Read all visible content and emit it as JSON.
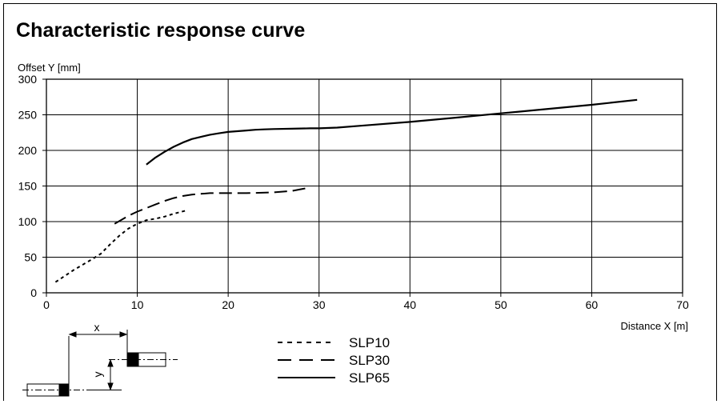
{
  "chart_data": {
    "type": "line",
    "title": "Characteristic response curve",
    "ylabel": "Offset Y [mm]",
    "xlabel": "Distance X [m]",
    "xlim": [
      0,
      70
    ],
    "ylim": [
      0,
      300
    ],
    "xticks": [
      0,
      10,
      20,
      30,
      40,
      50,
      60,
      70
    ],
    "yticks": [
      0,
      50,
      100,
      150,
      200,
      250,
      300
    ],
    "grid": true,
    "legend_position": "bottom-center",
    "series": [
      {
        "name": "SLP10",
        "style": "dotted",
        "x": [
          1,
          3,
          5,
          6,
          7,
          8,
          9,
          10,
          11,
          12,
          13,
          14,
          15.5
        ],
        "y": [
          15,
          32,
          47,
          55,
          68,
          80,
          90,
          97,
          102,
          104,
          107,
          111,
          116
        ]
      },
      {
        "name": "SLP30",
        "style": "dashed",
        "x": [
          7.5,
          9,
          10,
          11,
          12,
          13,
          14,
          15,
          16,
          17,
          18,
          20,
          22,
          25,
          27,
          29
        ],
        "y": [
          97,
          108,
          114,
          119,
          124,
          129,
          133,
          136,
          138,
          139,
          140,
          140,
          140,
          141,
          143,
          148
        ]
      },
      {
        "name": "SLP65",
        "style": "solid",
        "x": [
          11,
          12,
          13,
          14,
          15,
          16,
          17,
          18,
          19,
          20,
          21,
          22,
          23,
          24,
          25,
          27,
          29,
          30,
          32,
          35,
          40,
          45,
          50,
          55,
          60,
          65
        ],
        "y": [
          180,
          190,
          198,
          205,
          211,
          216,
          219,
          222,
          224,
          226,
          227,
          228,
          229,
          229.5,
          230,
          230.5,
          231,
          231,
          232,
          235,
          240,
          246,
          252,
          258,
          264,
          271
        ]
      }
    ],
    "inset_diagram_labels": {
      "horizontal_offset": "x",
      "vertical_offset": "y"
    }
  }
}
